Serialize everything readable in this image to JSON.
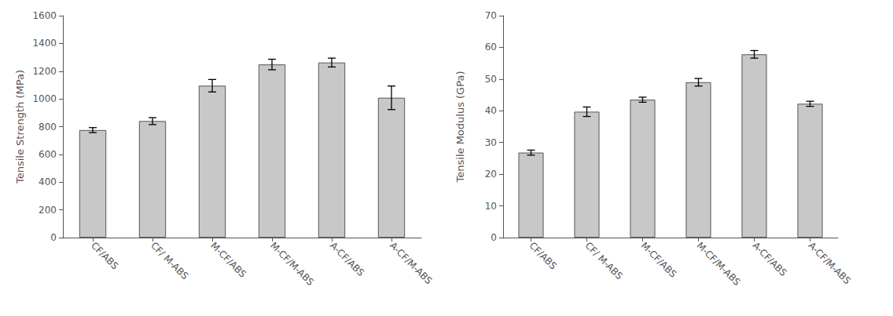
{
  "chart_data": [
    {
      "type": "bar",
      "categories": [
        "CF/ABS",
        "CF/ M-ABS",
        "M-CF/ABS",
        "M-CF/M-ABS",
        "A-CF/ABS",
        "A-CF/M-ABS"
      ],
      "values": [
        775,
        840,
        1095,
        1248,
        1262,
        1008
      ],
      "errors": [
        18,
        25,
        45,
        38,
        32,
        85
      ],
      "ylabel": "Tensile Strength (MPa)",
      "ylim": [
        0,
        1600
      ],
      "yticks": [
        0,
        200,
        400,
        600,
        800,
        1000,
        1200,
        1400,
        1600
      ],
      "color": "#C8C8C8",
      "grid": false
    },
    {
      "type": "bar",
      "categories": [
        "CF/ABS",
        "CF/ M-ABS",
        "M-CF/ABS",
        "M-CF/M-ABS",
        "A-CF/ABS",
        "A-CF/M-ABS"
      ],
      "values": [
        26.8,
        39.7,
        43.5,
        49.0,
        57.8,
        42.2
      ],
      "errors": [
        0.8,
        1.5,
        0.8,
        1.2,
        1.2,
        0.8
      ],
      "ylabel": "Tensile Modulus (GPa)",
      "ylim": [
        0,
        70
      ],
      "yticks": [
        0,
        10,
        20,
        30,
        40,
        50,
        60,
        70
      ],
      "color": "#C8C8C8",
      "grid": false
    }
  ]
}
